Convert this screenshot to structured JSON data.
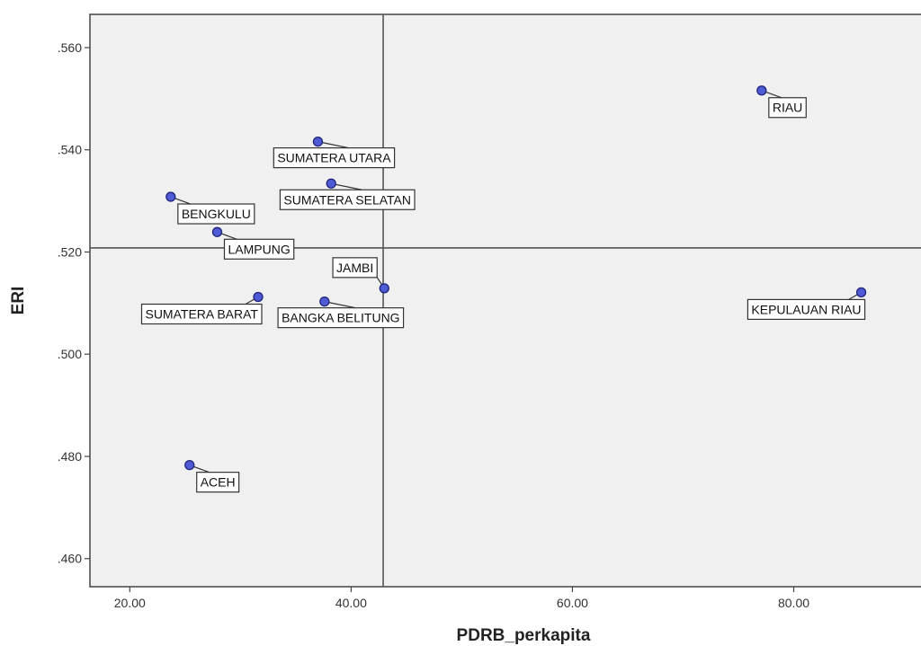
{
  "chart_data": {
    "type": "scatter",
    "xlabel": "PDRB_perkapita",
    "ylabel": "ERI",
    "xlim": [
      16.4,
      91.5
    ],
    "ylim": [
      0.4545,
      0.5665
    ],
    "x_ticks": [
      "20.00",
      "40.00",
      "60.00",
      "80.00"
    ],
    "x_tick_values": [
      20,
      40,
      60,
      80
    ],
    "y_ticks": [
      ".460",
      ".480",
      ".500",
      ".520",
      ".540",
      ".560"
    ],
    "y_tick_values": [
      0.46,
      0.48,
      0.5,
      0.52,
      0.54,
      0.56
    ],
    "reference_lines": {
      "x": 42.9,
      "y": 0.5208
    },
    "grid": false,
    "legend": "none",
    "colors": {
      "point_fill": "#4f5bd5",
      "point_stroke": "#1f247a",
      "plot_bg": "#f0f0f0",
      "ref_line": "#555555"
    },
    "points": [
      {
        "label": "RIAU",
        "x": 77.1,
        "y": 0.5516,
        "label_pos": "below-right"
      },
      {
        "label": "SUMATERA UTARA",
        "x": 37.0,
        "y": 0.5416,
        "label_pos": "below"
      },
      {
        "label": "SUMATERA SELATAN",
        "x": 38.2,
        "y": 0.5334,
        "label_pos": "below"
      },
      {
        "label": "BENGKULU",
        "x": 23.7,
        "y": 0.5308,
        "label_pos": "below-right"
      },
      {
        "label": "LAMPUNG",
        "x": 27.9,
        "y": 0.5239,
        "label_pos": "below-right"
      },
      {
        "label": "JAMBI",
        "x": 43.0,
        "y": 0.5129,
        "label_pos": "above-left"
      },
      {
        "label": "KEPULAUAN RIAU",
        "x": 86.1,
        "y": 0.5121,
        "label_pos": "below-left"
      },
      {
        "label": "SUMATERA BARAT",
        "x": 31.6,
        "y": 0.5112,
        "label_pos": "below-left"
      },
      {
        "label": "BANGKA BELITUNG",
        "x": 37.6,
        "y": 0.5103,
        "label_pos": "below"
      },
      {
        "label": "ACEH",
        "x": 25.4,
        "y": 0.4783,
        "label_pos": "below-right"
      }
    ]
  }
}
